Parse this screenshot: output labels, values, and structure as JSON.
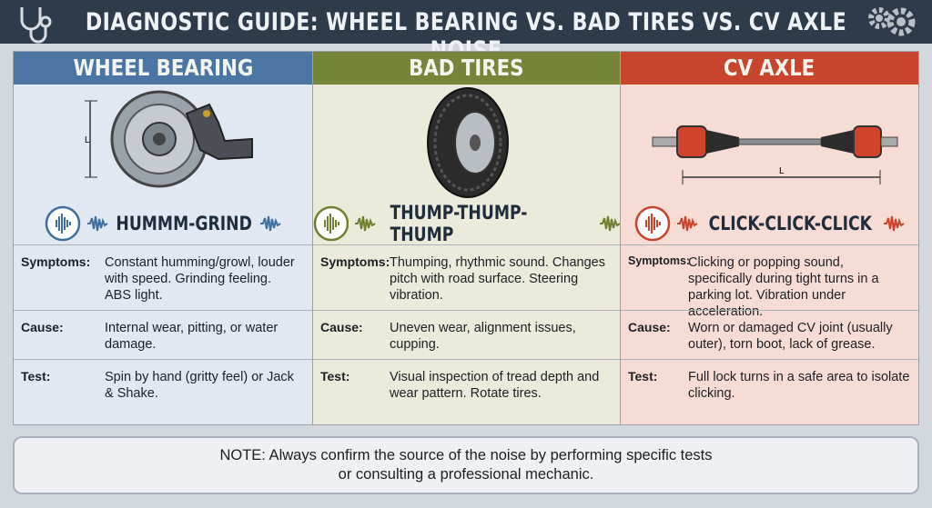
{
  "header": {
    "title": "DIAGNOSTIC GUIDE: WHEEL BEARING VS. BAD TIRES VS. CV AXLE NOISE"
  },
  "columns": [
    {
      "title": "WHEEL BEARING",
      "dimension_label": "L",
      "sound": "HUMMM-GRIND",
      "rows": [
        {
          "label": "Symptoms:",
          "text": "Constant humming/growl, louder with speed. Grinding feeling. ABS light."
        },
        {
          "label": "Cause:",
          "text": "Internal wear, pitting, or water damage."
        },
        {
          "label": "Test:",
          "text": "Spin by hand (gritty feel) or Jack & Shake."
        }
      ]
    },
    {
      "title": "BAD TIRES",
      "sound": "THUMP-THUMP-THUMP",
      "rows": [
        {
          "label": "Symptoms:",
          "text": "Thumping, rhythmic sound. Changes pitch with road surface. Steering vibration."
        },
        {
          "label": "Cause:",
          "text": "Uneven wear, alignment issues, cupping."
        },
        {
          "label": "Test:",
          "text": "Visual inspection of tread depth and wear pattern. Rotate tires."
        }
      ]
    },
    {
      "title": "CV AXLE",
      "dimension_label": "L",
      "sound": "CLICK-CLICK-CLICK",
      "rows": [
        {
          "label": "Symptoms:",
          "text": "Clicking or popping sound, specifically during tight turns in a parking lot. Vibration under acceleration."
        },
        {
          "label": "Cause:",
          "text": "Worn or damaged CV joint (usually outer), torn boot, lack of grease."
        },
        {
          "label": "Test:",
          "text": "Full lock turns in a safe area to isolate clicking."
        }
      ]
    }
  ],
  "note": {
    "text": "NOTE: Always confirm the source of the noise by performing specific tests or consulting a professional mechanic."
  }
}
